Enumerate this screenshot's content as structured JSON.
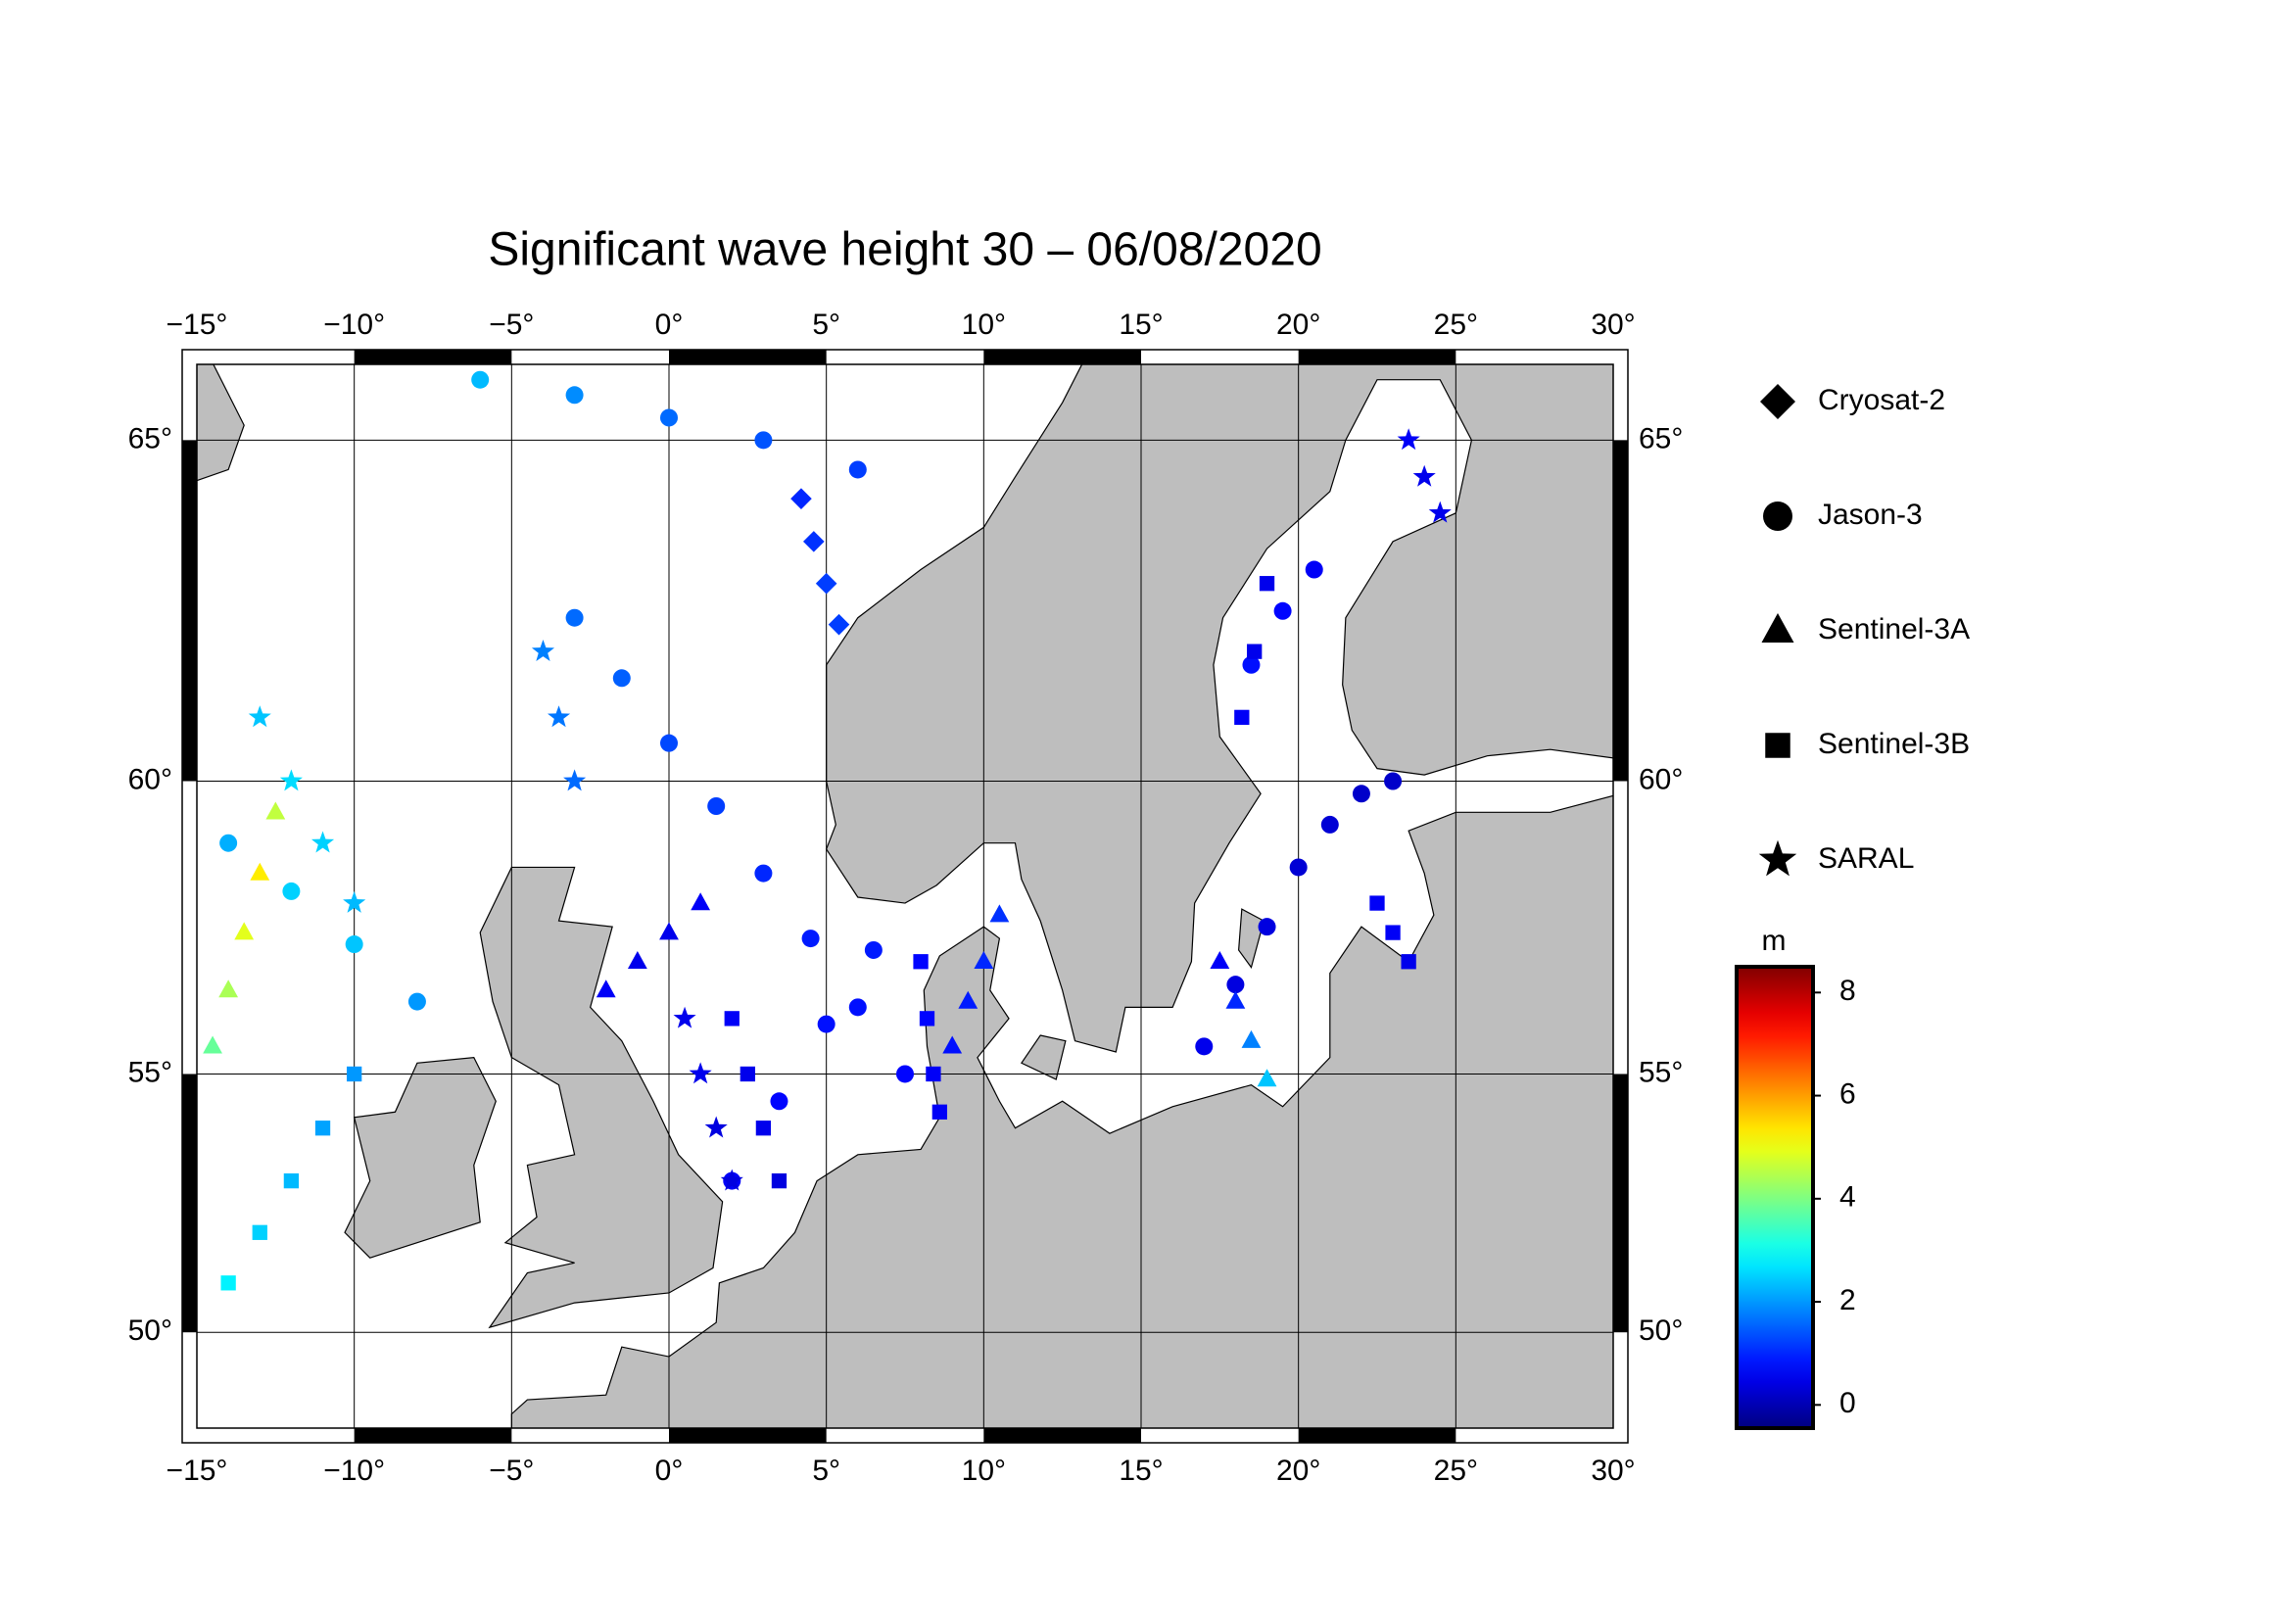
{
  "chart_data": {
    "type": "map-scatter",
    "title": "Significant wave height 30 – 06/08/2020",
    "xlim": [
      -15,
      30
    ],
    "ylim": [
      48,
      66
    ],
    "projection": "mercator",
    "grid": true,
    "xticks": [
      {
        "value": -15,
        "label": "−15°"
      },
      {
        "value": -10,
        "label": "−10°"
      },
      {
        "value": -5,
        "label": "−5°"
      },
      {
        "value": 0,
        "label": "0°"
      },
      {
        "value": 5,
        "label": "5°"
      },
      {
        "value": 10,
        "label": "10°"
      },
      {
        "value": 15,
        "label": "15°"
      },
      {
        "value": 20,
        "label": "20°"
      },
      {
        "value": 25,
        "label": "25°"
      },
      {
        "value": 30,
        "label": "30°"
      }
    ],
    "yticks": [
      {
        "value": 50,
        "label": "50°"
      },
      {
        "value": 55,
        "label": "55°"
      },
      {
        "value": 60,
        "label": "60°"
      },
      {
        "value": 65,
        "label": "65°"
      }
    ],
    "colorbar": {
      "label": "m",
      "colormap": "jet",
      "lim": [
        -0.45,
        8.5
      ],
      "ticks": [
        0,
        2,
        4,
        6,
        8
      ]
    },
    "series": [
      {
        "name": "Cryosat-2",
        "marker": "diamond",
        "lon": [
          4.2,
          4.6,
          5.0,
          5.4
        ],
        "lat": [
          64.2,
          63.6,
          63.0,
          62.4
        ],
        "values": [
          1.0,
          1.1,
          1.2,
          1.2
        ]
      },
      {
        "name": "Jason-3",
        "marker": "circle",
        "lon": [
          -3,
          -1.5,
          0,
          1.5,
          3,
          4.5,
          6,
          7.5,
          17,
          18,
          19,
          20,
          21,
          22,
          23,
          -14,
          -12,
          -10,
          -8,
          18.5,
          19.5,
          20.5,
          -6,
          -3,
          0,
          3,
          6,
          2,
          3.5,
          5,
          6.5
        ],
        "lat": [
          62.5,
          61.6,
          60.6,
          59.6,
          58.5,
          57.4,
          56.2,
          55.0,
          55.5,
          56.6,
          57.6,
          58.6,
          59.3,
          59.8,
          60.0,
          59.0,
          58.2,
          57.3,
          56.3,
          61.8,
          62.6,
          63.2,
          65.8,
          65.6,
          65.3,
          65.0,
          64.6,
          53.0,
          54.5,
          55.9,
          57.2
        ],
        "values": [
          1.6,
          1.5,
          1.3,
          1.2,
          1.0,
          0.9,
          0.8,
          0.7,
          0.5,
          0.4,
          0.4,
          0.3,
          0.3,
          0.2,
          0.2,
          2.2,
          2.5,
          2.4,
          2.0,
          0.8,
          0.7,
          0.6,
          2.3,
          1.9,
          1.6,
          1.4,
          1.2,
          0.6,
          0.7,
          0.8,
          0.9
        ]
      },
      {
        "name": "Sentinel-3A",
        "marker": "triangle",
        "lon": [
          -14.5,
          -14,
          -13.5,
          -13,
          -12.5,
          9,
          9.5,
          10,
          10.5,
          17.5,
          18,
          18.5,
          19,
          -2,
          -1,
          0,
          1
        ],
        "lat": [
          55.5,
          56.5,
          57.5,
          58.5,
          59.5,
          55.5,
          56.3,
          57.0,
          57.8,
          57.0,
          56.3,
          55.6,
          54.9,
          56.5,
          57.0,
          57.5,
          58.0
        ],
        "values": [
          3.8,
          4.4,
          4.9,
          5.3,
          4.6,
          0.8,
          0.9,
          1.0,
          1.1,
          0.6,
          1.0,
          1.8,
          2.4,
          0.6,
          0.5,
          0.5,
          0.6
        ]
      },
      {
        "name": "Sentinel-3B",
        "marker": "square",
        "lon": [
          -14,
          -13,
          -12,
          -11,
          -10,
          8,
          8.2,
          8.4,
          8.6,
          18.2,
          18.6,
          19.0,
          2,
          2.5,
          3,
          3.5,
          22.5,
          23,
          23.5
        ],
        "lat": [
          51.0,
          52.0,
          53.0,
          54.0,
          55.0,
          57.0,
          56.0,
          55.0,
          54.3,
          61.0,
          62.0,
          63.0,
          56.0,
          55.0,
          54.0,
          53.0,
          58.0,
          57.5,
          57.0
        ],
        "values": [
          2.8,
          2.5,
          2.3,
          2.1,
          2.0,
          0.7,
          0.7,
          0.6,
          0.6,
          0.6,
          0.5,
          0.5,
          0.6,
          0.5,
          0.5,
          0.4,
          0.6,
          0.6,
          0.5
        ]
      },
      {
        "name": "SARAL",
        "marker": "star",
        "lon": [
          -13,
          -12,
          -11,
          -10,
          0.5,
          1,
          1.5,
          2,
          23.5,
          24,
          24.5,
          -4,
          -3.5,
          -3
        ],
        "lat": [
          61.0,
          60.0,
          59.0,
          58.0,
          56.0,
          55.0,
          54.0,
          53.0,
          65.0,
          64.5,
          64.0,
          62.0,
          61.0,
          60.0
        ],
        "values": [
          2.4,
          2.6,
          2.5,
          2.3,
          0.5,
          0.5,
          0.4,
          0.4,
          0.6,
          0.5,
          0.5,
          1.8,
          1.7,
          1.6
        ]
      }
    ]
  }
}
